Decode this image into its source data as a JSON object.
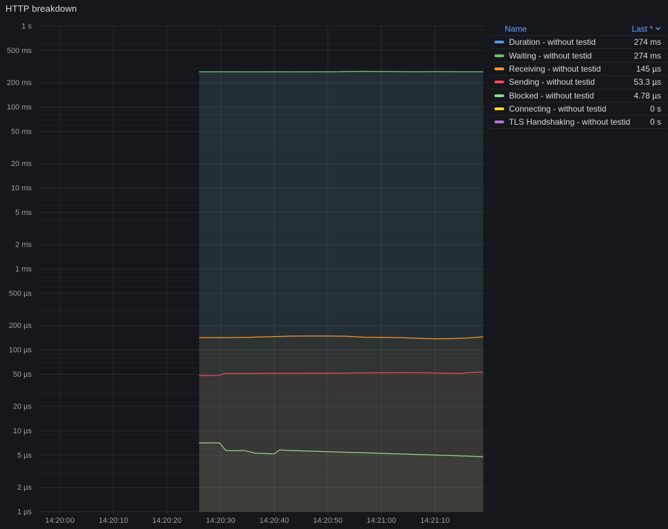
{
  "panel": {
    "title": "HTTP breakdown"
  },
  "colors": {
    "background": "#16171d",
    "axis_text": "#9d9fa6",
    "grid_major": "rgba(204,204,220,0.10)",
    "grid_minor": "rgba(204,204,220,0.045)",
    "legend_link": "#6e9fff",
    "legend_text": "#d8d9da"
  },
  "legend": {
    "name_header": "Name",
    "last_header": "Last *",
    "sort_icon": "chevron-down-icon"
  },
  "chart_data": {
    "type": "line",
    "title": "HTTP breakdown",
    "xlabel": "",
    "ylabel": "",
    "yscale": "log",
    "ylim": [
      1e-06,
      1
    ],
    "x_range_seconds": [
      -3.97,
      79.3
    ],
    "grid": true,
    "legend_position": "right",
    "y_ticks": [
      {
        "v": 1,
        "label": "1 s"
      },
      {
        "v": 0.5,
        "label": "500 ms"
      },
      {
        "v": 0.2,
        "label": "200 ms"
      },
      {
        "v": 0.1,
        "label": "100 ms"
      },
      {
        "v": 0.05,
        "label": "50 ms"
      },
      {
        "v": 0.02,
        "label": "20 ms"
      },
      {
        "v": 0.01,
        "label": "10 ms"
      },
      {
        "v": 0.005,
        "label": "5 ms"
      },
      {
        "v": 0.002,
        "label": "2 ms"
      },
      {
        "v": 0.001,
        "label": "1 ms"
      },
      {
        "v": 0.0005,
        "label": "500 µs"
      },
      {
        "v": 0.0002,
        "label": "200 µs"
      },
      {
        "v": 0.0001,
        "label": "100 µs"
      },
      {
        "v": 5e-05,
        "label": "50 µs"
      },
      {
        "v": 2e-05,
        "label": "20 µs"
      },
      {
        "v": 1e-05,
        "label": "10 µs"
      },
      {
        "v": 5e-06,
        "label": "5 µs"
      },
      {
        "v": 2e-06,
        "label": "2 µs"
      },
      {
        "v": 1e-06,
        "label": "1 µs"
      }
    ],
    "x_ticks": [
      {
        "t": 0,
        "label": "14:20:00"
      },
      {
        "t": 10,
        "label": "14:20:10"
      },
      {
        "t": 20,
        "label": "14:20:20"
      },
      {
        "t": 30,
        "label": "14:20:30"
      },
      {
        "t": 40,
        "label": "14:20:40"
      },
      {
        "t": 50,
        "label": "14:20:50"
      },
      {
        "t": 60,
        "label": "14:21:00"
      },
      {
        "t": 70,
        "label": "14:21:10"
      }
    ],
    "series": [
      {
        "name": "Duration - without testid",
        "color": "#5794F2",
        "last": "274 ms",
        "fill_opacity": 0.09,
        "points": [
          [
            26,
            0.272
          ],
          [
            29,
            0.273
          ],
          [
            31,
            0.2725
          ],
          [
            35,
            0.272
          ],
          [
            39,
            0.2725
          ],
          [
            43,
            0.272
          ],
          [
            47,
            0.2728
          ],
          [
            51,
            0.2732
          ],
          [
            54,
            0.276
          ],
          [
            57,
            0.2768
          ],
          [
            59,
            0.2755
          ],
          [
            62,
            0.2748
          ],
          [
            66,
            0.274
          ],
          [
            71,
            0.2742
          ],
          [
            75,
            0.2738
          ],
          [
            79,
            0.274
          ]
        ]
      },
      {
        "name": "Waiting - without testid",
        "color": "#73BF69",
        "last": "274 ms",
        "fill_opacity": 0.09,
        "points": [
          [
            26,
            0.272
          ],
          [
            29,
            0.273
          ],
          [
            31,
            0.2725
          ],
          [
            35,
            0.272
          ],
          [
            39,
            0.2725
          ],
          [
            43,
            0.272
          ],
          [
            47,
            0.2728
          ],
          [
            51,
            0.2732
          ],
          [
            54,
            0.276
          ],
          [
            57,
            0.2768
          ],
          [
            59,
            0.2755
          ],
          [
            62,
            0.2748
          ],
          [
            66,
            0.274
          ],
          [
            71,
            0.2742
          ],
          [
            75,
            0.2738
          ],
          [
            79,
            0.274
          ]
        ]
      },
      {
        "name": "Receiving - without testid",
        "color": "#FF9830",
        "last": "145 µs",
        "fill_opacity": 0.05,
        "points": [
          [
            26,
            0.000142
          ],
          [
            31,
            0.000142
          ],
          [
            35,
            0.0001432
          ],
          [
            39,
            0.0001455
          ],
          [
            43,
            0.000148
          ],
          [
            47,
            0.0001488
          ],
          [
            51,
            0.0001482
          ],
          [
            54,
            0.000147
          ],
          [
            57,
            0.0001435
          ],
          [
            60,
            0.0001428
          ],
          [
            64,
            0.0001415
          ],
          [
            68,
            0.0001382
          ],
          [
            71,
            0.0001372
          ],
          [
            74,
            0.0001385
          ],
          [
            76,
            0.0001402
          ],
          [
            79,
            0.000145
          ]
        ]
      },
      {
        "name": "Sending - without testid",
        "color": "#F2495C",
        "last": "53.3 µs",
        "fill_opacity": 0.05,
        "points": [
          [
            26,
            4.82e-05
          ],
          [
            29.7,
            4.83e-05
          ],
          [
            30.7,
            5.12e-05
          ],
          [
            35,
            5.13e-05
          ],
          [
            40,
            5.14e-05
          ],
          [
            45,
            5.15e-05
          ],
          [
            50,
            5.16e-05
          ],
          [
            55,
            5.19e-05
          ],
          [
            60,
            5.23e-05
          ],
          [
            65,
            5.25e-05
          ],
          [
            69,
            5.22e-05
          ],
          [
            72,
            5.15e-05
          ],
          [
            74.5,
            5.11e-05
          ],
          [
            76.5,
            5.27e-05
          ],
          [
            79,
            5.33e-05
          ]
        ]
      },
      {
        "name": "Blocked - without testid",
        "color": "#96D98D",
        "last": "4.78 µs",
        "fill_opacity": 0.05,
        "points": [
          [
            26,
            7.1e-06
          ],
          [
            29.8,
            7.1e-06
          ],
          [
            31,
            5.7e-06
          ],
          [
            34.5,
            5.7e-06
          ],
          [
            36.5,
            5.3e-06
          ],
          [
            40,
            5.2e-06
          ],
          [
            41,
            5.8e-06
          ],
          [
            44,
            5.7e-06
          ],
          [
            47.5,
            5.6e-06
          ],
          [
            51,
            5.5e-06
          ],
          [
            55,
            5.4e-06
          ],
          [
            59,
            5.3e-06
          ],
          [
            63,
            5.2e-06
          ],
          [
            67,
            5.1e-06
          ],
          [
            71,
            5e-06
          ],
          [
            75,
            4.9e-06
          ],
          [
            79,
            4.8e-06
          ]
        ]
      },
      {
        "name": "Connecting - without testid",
        "color": "#FADE2A",
        "last": "0 s",
        "fill_opacity": 0,
        "points": []
      },
      {
        "name": "TLS Handshaking - without testid",
        "color": "#B877D9",
        "last": "0 s",
        "fill_opacity": 0,
        "points": []
      }
    ]
  }
}
